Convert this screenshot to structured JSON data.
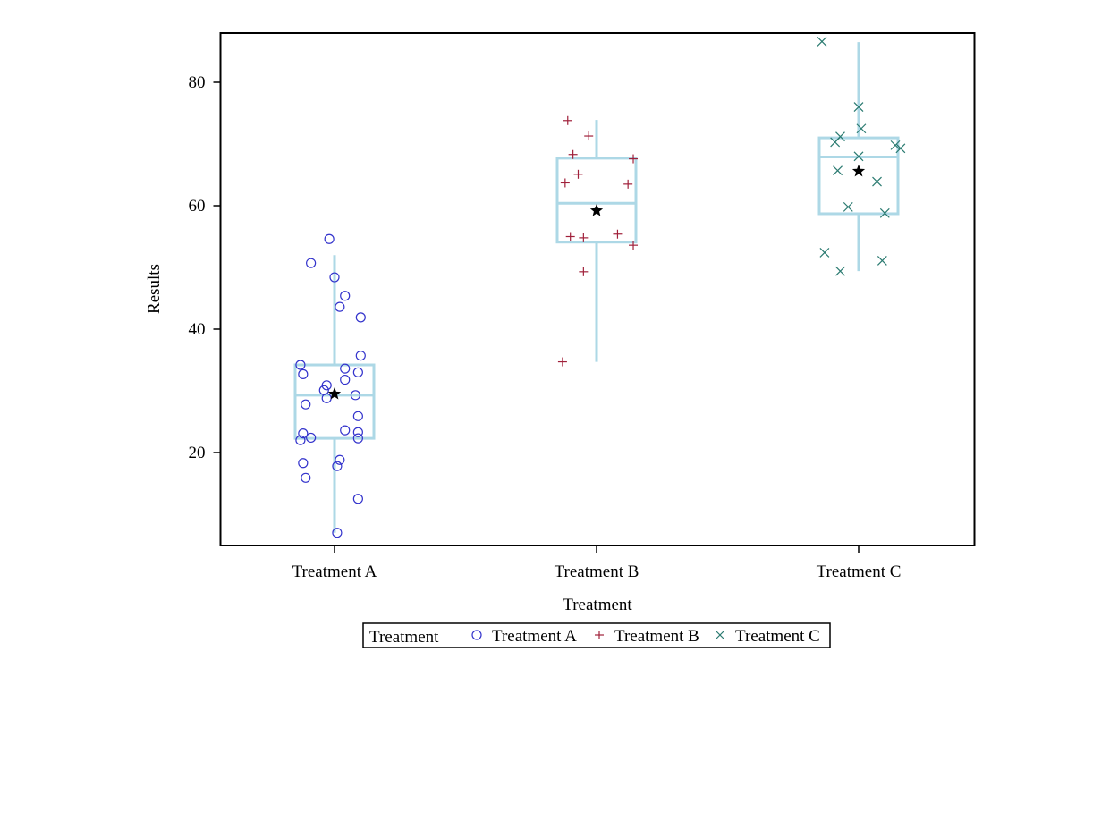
{
  "chart_data": {
    "type": "box",
    "title": "",
    "xlabel": "Treatment",
    "ylabel": "Results",
    "ylim": [
      5,
      88
    ],
    "y_ticks": [
      20,
      40,
      60,
      80
    ],
    "categories": [
      "Treatment A",
      "Treatment B",
      "Treatment C"
    ],
    "grid": false,
    "legend": {
      "title": "Treatment",
      "placement": "bottom-center",
      "entries": [
        {
          "name": "Treatment A",
          "marker": "circle",
          "color": "#3333CC"
        },
        {
          "name": "Treatment B",
          "marker": "plus",
          "color": "#A0203A"
        },
        {
          "name": "Treatment C",
          "marker": "x",
          "color": "#2A7A70"
        }
      ]
    },
    "box_color": "#ADD8E6",
    "mean_marker": "star",
    "boxes": [
      {
        "category": "Treatment A",
        "min": 7,
        "q1": 22.3,
        "median": 29.3,
        "q3": 34.2,
        "max": 52,
        "mean": 29.5
      },
      {
        "category": "Treatment B",
        "min": 34.7,
        "q1": 54.1,
        "median": 60.4,
        "q3": 67.7,
        "max": 73.9,
        "mean": 59.2
      },
      {
        "category": "Treatment C",
        "min": 49.4,
        "q1": 58.7,
        "median": 67.9,
        "q3": 71,
        "max": 86.5,
        "mean": 65.6
      }
    ],
    "series": [
      {
        "name": "Treatment A",
        "category": "Treatment A",
        "points": [
          {
            "dx": -0.02,
            "y": 54.6
          },
          {
            "dx": -0.09,
            "y": 50.7
          },
          {
            "dx": 0.0,
            "y": 48.4
          },
          {
            "dx": 0.04,
            "y": 45.4
          },
          {
            "dx": 0.02,
            "y": 43.6
          },
          {
            "dx": 0.1,
            "y": 41.9
          },
          {
            "dx": 0.1,
            "y": 35.7
          },
          {
            "dx": -0.13,
            "y": 34.2
          },
          {
            "dx": 0.04,
            "y": 33.6
          },
          {
            "dx": 0.09,
            "y": 33.0
          },
          {
            "dx": -0.12,
            "y": 32.7
          },
          {
            "dx": 0.04,
            "y": 31.8
          },
          {
            "dx": -0.03,
            "y": 30.9
          },
          {
            "dx": -0.04,
            "y": 30.1
          },
          {
            "dx": 0.08,
            "y": 29.3
          },
          {
            "dx": -0.03,
            "y": 28.8
          },
          {
            "dx": -0.11,
            "y": 27.8
          },
          {
            "dx": 0.09,
            "y": 25.9
          },
          {
            "dx": 0.04,
            "y": 23.6
          },
          {
            "dx": 0.09,
            "y": 23.3
          },
          {
            "dx": -0.12,
            "y": 23.1
          },
          {
            "dx": -0.09,
            "y": 22.4
          },
          {
            "dx": 0.09,
            "y": 22.3
          },
          {
            "dx": -0.13,
            "y": 22.0
          },
          {
            "dx": 0.02,
            "y": 18.8
          },
          {
            "dx": -0.12,
            "y": 18.3
          },
          {
            "dx": 0.01,
            "y": 17.8
          },
          {
            "dx": -0.11,
            "y": 15.9
          },
          {
            "dx": 0.09,
            "y": 12.5
          },
          {
            "dx": 0.01,
            "y": 7.0
          }
        ]
      },
      {
        "name": "Treatment B",
        "category": "Treatment B",
        "points": [
          {
            "dx": -0.11,
            "y": 73.8
          },
          {
            "dx": -0.03,
            "y": 71.3
          },
          {
            "dx": -0.09,
            "y": 68.3
          },
          {
            "dx": 0.14,
            "y": 67.6
          },
          {
            "dx": -0.07,
            "y": 65.1
          },
          {
            "dx": -0.12,
            "y": 63.7
          },
          {
            "dx": 0.12,
            "y": 63.5
          },
          {
            "dx": 0.08,
            "y": 55.4
          },
          {
            "dx": -0.1,
            "y": 55.0
          },
          {
            "dx": -0.05,
            "y": 54.8
          },
          {
            "dx": 0.14,
            "y": 53.6
          },
          {
            "dx": -0.05,
            "y": 49.3
          },
          {
            "dx": -0.13,
            "y": 34.7
          }
        ]
      },
      {
        "name": "Treatment C",
        "category": "Treatment C",
        "points": [
          {
            "dx": -0.14,
            "y": 86.6
          },
          {
            "dx": 0.0,
            "y": 76.0
          },
          {
            "dx": 0.01,
            "y": 72.5
          },
          {
            "dx": -0.07,
            "y": 71.2
          },
          {
            "dx": -0.09,
            "y": 70.3
          },
          {
            "dx": 0.14,
            "y": 69.8
          },
          {
            "dx": 0.16,
            "y": 69.3
          },
          {
            "dx": 0.0,
            "y": 68.0
          },
          {
            "dx": -0.08,
            "y": 65.7
          },
          {
            "dx": 0.07,
            "y": 63.9
          },
          {
            "dx": -0.04,
            "y": 59.8
          },
          {
            "dx": 0.1,
            "y": 58.8
          },
          {
            "dx": -0.13,
            "y": 52.4
          },
          {
            "dx": 0.09,
            "y": 51.1
          },
          {
            "dx": -0.07,
            "y": 49.4
          }
        ]
      }
    ]
  }
}
